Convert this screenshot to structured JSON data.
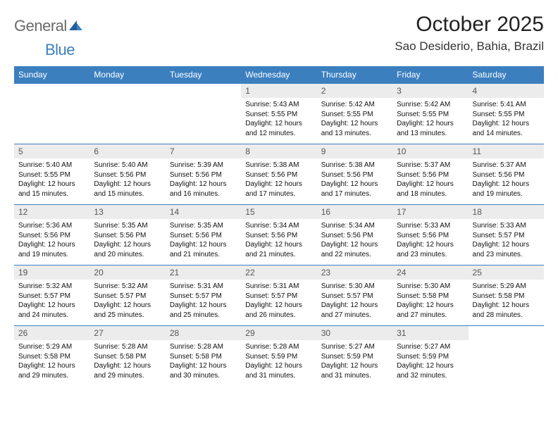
{
  "brand": {
    "textA": "General",
    "textB": "Blue"
  },
  "title": "October 2025",
  "location": "Sao Desiderio, Bahia, Brazil",
  "colors": {
    "header_bg": "#3c7fbf",
    "header_text": "#ffffff",
    "daynum_bg": "#ececec",
    "row_border": "#3c7fbf",
    "page_bg": "#ffffff"
  },
  "weekdays": [
    "Sunday",
    "Monday",
    "Tuesday",
    "Wednesday",
    "Thursday",
    "Friday",
    "Saturday"
  ],
  "weeks": [
    [
      {
        "n": "",
        "sr": "",
        "ss": "",
        "dl": ""
      },
      {
        "n": "",
        "sr": "",
        "ss": "",
        "dl": ""
      },
      {
        "n": "",
        "sr": "",
        "ss": "",
        "dl": ""
      },
      {
        "n": "1",
        "sr": "Sunrise: 5:43 AM",
        "ss": "Sunset: 5:55 PM",
        "dl": "Daylight: 12 hours and 12 minutes."
      },
      {
        "n": "2",
        "sr": "Sunrise: 5:42 AM",
        "ss": "Sunset: 5:55 PM",
        "dl": "Daylight: 12 hours and 13 minutes."
      },
      {
        "n": "3",
        "sr": "Sunrise: 5:42 AM",
        "ss": "Sunset: 5:55 PM",
        "dl": "Daylight: 12 hours and 13 minutes."
      },
      {
        "n": "4",
        "sr": "Sunrise: 5:41 AM",
        "ss": "Sunset: 5:55 PM",
        "dl": "Daylight: 12 hours and 14 minutes."
      }
    ],
    [
      {
        "n": "5",
        "sr": "Sunrise: 5:40 AM",
        "ss": "Sunset: 5:55 PM",
        "dl": "Daylight: 12 hours and 15 minutes."
      },
      {
        "n": "6",
        "sr": "Sunrise: 5:40 AM",
        "ss": "Sunset: 5:56 PM",
        "dl": "Daylight: 12 hours and 15 minutes."
      },
      {
        "n": "7",
        "sr": "Sunrise: 5:39 AM",
        "ss": "Sunset: 5:56 PM",
        "dl": "Daylight: 12 hours and 16 minutes."
      },
      {
        "n": "8",
        "sr": "Sunrise: 5:38 AM",
        "ss": "Sunset: 5:56 PM",
        "dl": "Daylight: 12 hours and 17 minutes."
      },
      {
        "n": "9",
        "sr": "Sunrise: 5:38 AM",
        "ss": "Sunset: 5:56 PM",
        "dl": "Daylight: 12 hours and 17 minutes."
      },
      {
        "n": "10",
        "sr": "Sunrise: 5:37 AM",
        "ss": "Sunset: 5:56 PM",
        "dl": "Daylight: 12 hours and 18 minutes."
      },
      {
        "n": "11",
        "sr": "Sunrise: 5:37 AM",
        "ss": "Sunset: 5:56 PM",
        "dl": "Daylight: 12 hours and 19 minutes."
      }
    ],
    [
      {
        "n": "12",
        "sr": "Sunrise: 5:36 AM",
        "ss": "Sunset: 5:56 PM",
        "dl": "Daylight: 12 hours and 19 minutes."
      },
      {
        "n": "13",
        "sr": "Sunrise: 5:35 AM",
        "ss": "Sunset: 5:56 PM",
        "dl": "Daylight: 12 hours and 20 minutes."
      },
      {
        "n": "14",
        "sr": "Sunrise: 5:35 AM",
        "ss": "Sunset: 5:56 PM",
        "dl": "Daylight: 12 hours and 21 minutes."
      },
      {
        "n": "15",
        "sr": "Sunrise: 5:34 AM",
        "ss": "Sunset: 5:56 PM",
        "dl": "Daylight: 12 hours and 21 minutes."
      },
      {
        "n": "16",
        "sr": "Sunrise: 5:34 AM",
        "ss": "Sunset: 5:56 PM",
        "dl": "Daylight: 12 hours and 22 minutes."
      },
      {
        "n": "17",
        "sr": "Sunrise: 5:33 AM",
        "ss": "Sunset: 5:56 PM",
        "dl": "Daylight: 12 hours and 23 minutes."
      },
      {
        "n": "18",
        "sr": "Sunrise: 5:33 AM",
        "ss": "Sunset: 5:57 PM",
        "dl": "Daylight: 12 hours and 23 minutes."
      }
    ],
    [
      {
        "n": "19",
        "sr": "Sunrise: 5:32 AM",
        "ss": "Sunset: 5:57 PM",
        "dl": "Daylight: 12 hours and 24 minutes."
      },
      {
        "n": "20",
        "sr": "Sunrise: 5:32 AM",
        "ss": "Sunset: 5:57 PM",
        "dl": "Daylight: 12 hours and 25 minutes."
      },
      {
        "n": "21",
        "sr": "Sunrise: 5:31 AM",
        "ss": "Sunset: 5:57 PM",
        "dl": "Daylight: 12 hours and 25 minutes."
      },
      {
        "n": "22",
        "sr": "Sunrise: 5:31 AM",
        "ss": "Sunset: 5:57 PM",
        "dl": "Daylight: 12 hours and 26 minutes."
      },
      {
        "n": "23",
        "sr": "Sunrise: 5:30 AM",
        "ss": "Sunset: 5:57 PM",
        "dl": "Daylight: 12 hours and 27 minutes."
      },
      {
        "n": "24",
        "sr": "Sunrise: 5:30 AM",
        "ss": "Sunset: 5:58 PM",
        "dl": "Daylight: 12 hours and 27 minutes."
      },
      {
        "n": "25",
        "sr": "Sunrise: 5:29 AM",
        "ss": "Sunset: 5:58 PM",
        "dl": "Daylight: 12 hours and 28 minutes."
      }
    ],
    [
      {
        "n": "26",
        "sr": "Sunrise: 5:29 AM",
        "ss": "Sunset: 5:58 PM",
        "dl": "Daylight: 12 hours and 29 minutes."
      },
      {
        "n": "27",
        "sr": "Sunrise: 5:28 AM",
        "ss": "Sunset: 5:58 PM",
        "dl": "Daylight: 12 hours and 29 minutes."
      },
      {
        "n": "28",
        "sr": "Sunrise: 5:28 AM",
        "ss": "Sunset: 5:58 PM",
        "dl": "Daylight: 12 hours and 30 minutes."
      },
      {
        "n": "29",
        "sr": "Sunrise: 5:28 AM",
        "ss": "Sunset: 5:59 PM",
        "dl": "Daylight: 12 hours and 31 minutes."
      },
      {
        "n": "30",
        "sr": "Sunrise: 5:27 AM",
        "ss": "Sunset: 5:59 PM",
        "dl": "Daylight: 12 hours and 31 minutes."
      },
      {
        "n": "31",
        "sr": "Sunrise: 5:27 AM",
        "ss": "Sunset: 5:59 PM",
        "dl": "Daylight: 12 hours and 32 minutes."
      },
      {
        "n": "",
        "sr": "",
        "ss": "",
        "dl": ""
      }
    ]
  ]
}
